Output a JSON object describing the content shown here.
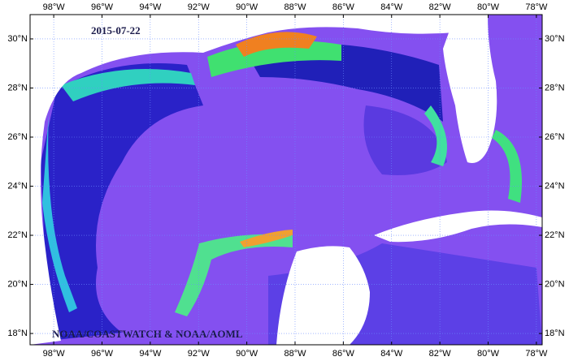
{
  "map": {
    "date": "2015-07-22",
    "credit": "NOAA/COASTWATCH & NOAA/AOML",
    "xlim": [
      -98.98,
      -77.76
    ],
    "ylim": [
      17.54,
      30.99
    ],
    "xticks": [
      {
        "value": -98,
        "label": "98°W"
      },
      {
        "value": -96,
        "label": "96°W"
      },
      {
        "value": -94,
        "label": "94°W"
      },
      {
        "value": -92,
        "label": "92°W"
      },
      {
        "value": -90,
        "label": "90°W"
      },
      {
        "value": -88,
        "label": "88°W"
      },
      {
        "value": -86,
        "label": "86°W"
      },
      {
        "value": -84,
        "label": "84°W"
      },
      {
        "value": -82,
        "label": "82°W"
      },
      {
        "value": -80,
        "label": "80°W"
      },
      {
        "value": -78,
        "label": "78°W"
      }
    ],
    "yticks": [
      {
        "value": 18,
        "label": "18°N"
      },
      {
        "value": 20,
        "label": "20°N"
      },
      {
        "value": 22,
        "label": "22°N"
      },
      {
        "value": 24,
        "label": "24°N"
      },
      {
        "value": 26,
        "label": "26°N"
      },
      {
        "value": 28,
        "label": "28°N"
      },
      {
        "value": 30,
        "label": "30°N"
      }
    ]
  }
}
